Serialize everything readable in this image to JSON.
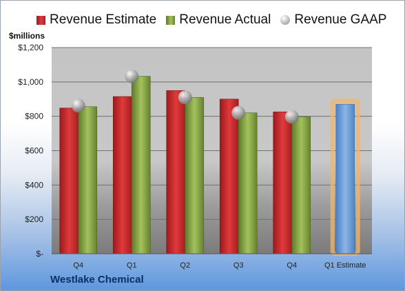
{
  "company": "Westlake Chemical",
  "unit_label": "$millions",
  "legend": {
    "estimate": "Revenue Estimate",
    "actual": "Revenue Actual",
    "gaap": "Revenue GAAP"
  },
  "colors": {
    "estimate": "#d22b2d",
    "actual": "#8fb04a",
    "gaap": "#b8b8b8",
    "forecast": "#6f9fd8",
    "forecast_glow": "#f0b56b"
  },
  "chart_data": {
    "type": "bar",
    "categories": [
      "Q4",
      "Q1",
      "Q2",
      "Q3",
      "Q4",
      "Q1 Estimate"
    ],
    "series": [
      {
        "name": "Revenue Estimate",
        "values": [
          848,
          915,
          950,
          900,
          826,
          870
        ]
      },
      {
        "name": "Revenue Actual",
        "values": [
          856,
          1033,
          910,
          820,
          797,
          null
        ]
      },
      {
        "name": "Revenue GAAP",
        "values": [
          862,
          1033,
          910,
          820,
          797,
          null
        ]
      }
    ],
    "ylabel": "$millions",
    "ylim": [
      0,
      1200
    ],
    "yticks": [
      0,
      200,
      400,
      600,
      800,
      1000,
      1200
    ],
    "ytick_labels": [
      "$-",
      "$200",
      "$400",
      "$600",
      "$800",
      "$1,000",
      "$1,200"
    ],
    "grid": true,
    "legend_position": "top"
  }
}
